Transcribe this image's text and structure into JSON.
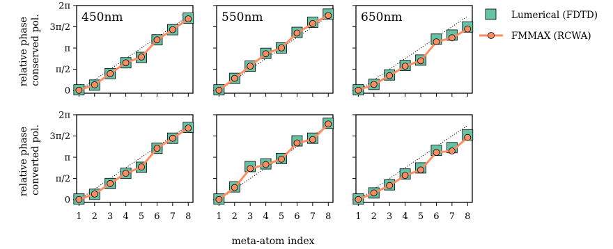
{
  "figure": {
    "xlabel": "meta-atom index",
    "row_ylabels": [
      [
        "relative phase",
        "conserved pol."
      ],
      [
        "relative phase",
        "converted pol."
      ]
    ]
  },
  "legend": {
    "placement": "upper-right-outside",
    "items": [
      {
        "label": "Lumerical (FDTD)",
        "marker": "square",
        "color": "#66c2a5"
      },
      {
        "label": "FMMAX (RCWA)",
        "marker": "circle-line",
        "color": "#fc8d62"
      }
    ]
  },
  "colors": {
    "fdtd_fill": "#66c2a5",
    "rcwa_line": "#fc8d62",
    "rcwa_marker_fill": "#fc8d62",
    "reference_line": "#000000"
  },
  "chart_data": [
    {
      "type": "line",
      "title": "450nm",
      "row": 0,
      "col": 0,
      "x": [
        1,
        2,
        3,
        4,
        5,
        6,
        7,
        8
      ],
      "xticks": [
        "1",
        "2",
        "3",
        "4",
        "5",
        "6",
        "7",
        "8"
      ],
      "yticks": [
        "0",
        "π/2",
        "π",
        "3π/2",
        "2π"
      ],
      "ylim": [
        -0.2,
        6.283
      ],
      "series": [
        {
          "name": "Lumerical (FDTD)",
          "values": [
            0.05,
            0.4,
            1.25,
            2.05,
            2.45,
            3.75,
            4.5,
            5.35
          ]
        },
        {
          "name": "FMMAX (RCWA)",
          "values": [
            0.02,
            0.42,
            1.25,
            2.05,
            2.48,
            3.75,
            4.5,
            5.3
          ]
        }
      ],
      "reference": {
        "from": [
          1,
          0.0
        ],
        "to": [
          8,
          5.5
        ]
      }
    },
    {
      "type": "line",
      "title": "550nm",
      "row": 0,
      "col": 1,
      "x": [
        1,
        2,
        3,
        4,
        5,
        6,
        7,
        8
      ],
      "xticks": [
        "1",
        "2",
        "3",
        "4",
        "5",
        "6",
        "7",
        "8"
      ],
      "yticks": [
        "0",
        "π/2",
        "π",
        "3π/2",
        "2π"
      ],
      "ylim": [
        -0.2,
        6.283
      ],
      "series": [
        {
          "name": "Lumerical (FDTD)",
          "values": [
            0.05,
            0.9,
            1.8,
            2.75,
            3.15,
            4.3,
            5.05,
            5.65
          ]
        },
        {
          "name": "FMMAX (RCWA)",
          "values": [
            0.02,
            0.9,
            1.8,
            2.72,
            3.15,
            4.25,
            4.95,
            5.55
          ]
        }
      ],
      "reference": {
        "from": [
          1,
          0.0
        ],
        "to": [
          8,
          5.5
        ]
      }
    },
    {
      "type": "line",
      "title": "650nm",
      "row": 0,
      "col": 2,
      "x": [
        1,
        2,
        3,
        4,
        5,
        6,
        7,
        8
      ],
      "xticks": [
        "1",
        "2",
        "3",
        "4",
        "5",
        "6",
        "7",
        "8"
      ],
      "yticks": [
        "0",
        "π/2",
        "π",
        "3π/2",
        "2π"
      ],
      "ylim": [
        -0.2,
        6.283
      ],
      "series": [
        {
          "name": "Lumerical (FDTD)",
          "values": [
            0.05,
            0.45,
            1.15,
            1.85,
            2.25,
            3.8,
            4.1,
            4.7
          ]
        },
        {
          "name": "FMMAX (RCWA)",
          "values": [
            0.02,
            0.45,
            1.1,
            1.8,
            2.2,
            3.6,
            3.9,
            4.55
          ]
        }
      ],
      "reference": {
        "from": [
          1,
          0.0
        ],
        "to": [
          8,
          5.5
        ]
      }
    },
    {
      "type": "line",
      "title": "",
      "row": 1,
      "col": 0,
      "x": [
        1,
        2,
        3,
        4,
        5,
        6,
        7,
        8
      ],
      "xticks": [
        "1",
        "2",
        "3",
        "4",
        "5",
        "6",
        "7",
        "8"
      ],
      "yticks": [
        "0",
        "π/2",
        "π",
        "3π/2",
        "2π"
      ],
      "ylim": [
        -0.2,
        6.283
      ],
      "series": [
        {
          "name": "Lumerical (FDTD)",
          "values": [
            0.05,
            0.4,
            1.2,
            1.95,
            2.4,
            3.8,
            4.55,
            5.35
          ]
        },
        {
          "name": "FMMAX (RCWA)",
          "values": [
            0.02,
            0.42,
            1.2,
            1.95,
            2.42,
            3.8,
            4.55,
            5.3
          ]
        }
      ],
      "reference": {
        "from": [
          1,
          0.0
        ],
        "to": [
          8,
          5.5
        ]
      }
    },
    {
      "type": "line",
      "title": "",
      "row": 1,
      "col": 1,
      "x": [
        1,
        2,
        3,
        4,
        5,
        6,
        7,
        8
      ],
      "xticks": [
        "1",
        "2",
        "3",
        "4",
        "5",
        "6",
        "7",
        "8"
      ],
      "yticks": [
        "0",
        "π/2",
        "π",
        "3π/2",
        "2π"
      ],
      "ylim": [
        -0.2,
        6.283
      ],
      "series": [
        {
          "name": "Lumerical (FDTD)",
          "values": [
            0.05,
            0.95,
            2.45,
            2.65,
            3.05,
            4.35,
            4.55,
            5.65
          ]
        },
        {
          "name": "FMMAX (RCWA)",
          "values": [
            0.02,
            0.9,
            2.3,
            2.6,
            3.0,
            4.2,
            4.45,
            5.6
          ]
        }
      ],
      "reference": {
        "from": [
          1,
          0.0
        ],
        "to": [
          8,
          5.5
        ]
      }
    },
    {
      "type": "line",
      "title": "",
      "row": 1,
      "col": 2,
      "x": [
        1,
        2,
        3,
        4,
        5,
        6,
        7,
        8
      ],
      "xticks": [
        "1",
        "2",
        "3",
        "4",
        "5",
        "6",
        "7",
        "8"
      ],
      "yticks": [
        "0",
        "π/2",
        "π",
        "3π/2",
        "2π"
      ],
      "ylim": [
        -0.2,
        6.283
      ],
      "series": [
        {
          "name": "Lumerical (FDTD)",
          "values": [
            0.05,
            0.5,
            1.1,
            1.9,
            2.35,
            3.65,
            3.85,
            4.8
          ]
        },
        {
          "name": "FMMAX (RCWA)",
          "values": [
            0.02,
            0.5,
            1.05,
            1.8,
            2.2,
            3.5,
            3.6,
            4.6
          ]
        }
      ],
      "reference": {
        "from": [
          1,
          0.0
        ],
        "to": [
          8,
          5.5
        ]
      }
    }
  ]
}
